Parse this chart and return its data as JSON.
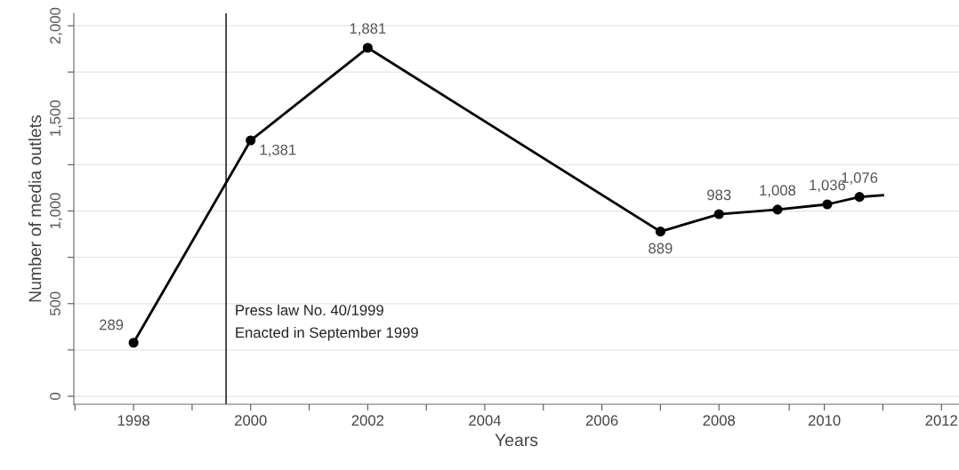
{
  "chart_data": {
    "type": "line",
    "xlabel": "Years",
    "ylabel": "Number of media outlets",
    "series": [
      {
        "color": "#000000",
        "x": [
          1998,
          2000,
          2002,
          2007,
          2008,
          2009,
          2009.85,
          2010.4
        ],
        "values": [
          289,
          1381,
          1881,
          889,
          983,
          1008,
          1036,
          1076
        ],
        "value_labels": [
          "289",
          "1,381",
          "1,881",
          "889",
          "983",
          "1,008",
          "1,036",
          "1,076"
        ],
        "marker": "circle"
      },
      {
        "color": "#000000",
        "x": [
          2010.4,
          2010.8
        ],
        "values": [
          1076,
          1085
        ],
        "marker": "none"
      }
    ],
    "xlim": [
      1996.98,
      2012.1
    ],
    "xticks": [
      {
        "value": 1997,
        "label": null
      },
      1998,
      {
        "value": 1999,
        "label": null
      },
      2000,
      {
        "value": 2001,
        "label": null
      },
      2002,
      {
        "value": 2003,
        "label": null
      },
      2004,
      {
        "value": 2005,
        "label": null
      },
      2006,
      {
        "value": 2007,
        "label": null
      },
      2008,
      {
        "value": 2009.2,
        "label": null
      },
      {
        "value": 2009.8,
        "label": "2010"
      },
      {
        "value": 2010.8,
        "label": null
      },
      {
        "value": 2011.8,
        "label": "2012"
      }
    ],
    "ylim": [
      -43,
      2067
    ],
    "yticks": [
      {
        "value": 0,
        "label": "0"
      },
      {
        "value": 250,
        "label": null
      },
      {
        "value": 500,
        "label": "500"
      },
      {
        "value": 750,
        "label": null
      },
      {
        "value": 1000,
        "label": "1,000"
      },
      {
        "value": 1250,
        "label": null
      },
      {
        "value": 1500,
        "label": "1,500"
      },
      {
        "value": 1750,
        "label": null
      },
      {
        "value": 2000,
        "label": "2,000"
      }
    ],
    "grid": "y",
    "line_style": "solid",
    "ref_lines": [
      {
        "axis": "x",
        "value": 1999.58,
        "label": "Press law No. 40/1999\nEnacted in September 1999",
        "color": "#000000"
      }
    ]
  }
}
